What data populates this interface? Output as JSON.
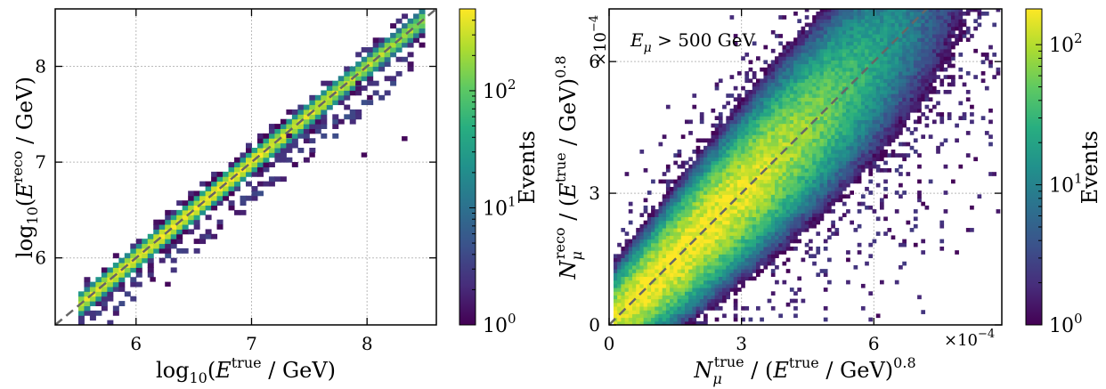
{
  "chart_data": [
    {
      "type": "heatmap",
      "title": "",
      "xlabel": "log10(E^true / GeV)",
      "ylabel": "log10(E^reco / GeV)",
      "xlim": [
        5.3,
        8.6
      ],
      "ylim": [
        5.3,
        8.6
      ],
      "xticks": [
        6,
        7,
        8
      ],
      "yticks": [
        6,
        7,
        8
      ],
      "grid": true,
      "diagonal": "y = x (dashed grey)",
      "colorbar": {
        "label": "Events",
        "scale": "log",
        "range": [
          1,
          500
        ],
        "ticks": [
          {
            "base": "10",
            "exp": "0"
          },
          {
            "base": "10",
            "exp": "1"
          },
          {
            "base": "10",
            "exp": "2"
          }
        ],
        "colormap": "viridis"
      },
      "density": {
        "ridge": "y = x",
        "x_range": [
          5.5,
          8.45
        ],
        "ridge_width_log10": 0.06,
        "peak_counts": 500,
        "outlier_points": [
          [
            7.95,
            7.05
          ],
          [
            8.3,
            7.22
          ],
          [
            8.0,
            7.65
          ],
          [
            7.9,
            7.8
          ],
          [
            7.35,
            6.95
          ],
          [
            6.25,
            5.7
          ],
          [
            6.12,
            5.75
          ],
          [
            6.7,
            6.3
          ],
          [
            7.5,
            7.05
          ],
          [
            7.3,
            7.25
          ]
        ]
      }
    },
    {
      "type": "heatmap",
      "title": "",
      "xlabel": "N_μ^true / (E^true / GeV)^0.8",
      "ylabel": "N_μ^reco / (E^true / GeV)^0.8",
      "xlim": [
        0,
        0.00089
      ],
      "ylim": [
        0,
        0.00072
      ],
      "xticks": [
        0,
        0.0003,
        0.0006
      ],
      "yticks": [
        0,
        0.0003,
        0.0006
      ],
      "x_multiplier": {
        "base": "×10",
        "exp": "−4"
      },
      "y_multiplier": {
        "base": "×10",
        "exp": "−4"
      },
      "tick_labels": [
        "0",
        "3",
        "6"
      ],
      "grid": true,
      "diagonal": "y = x (dashed grey)",
      "annotation": "E_μ > 500 GeV",
      "colorbar": {
        "label": "Events",
        "scale": "log",
        "range": [
          1,
          180
        ],
        "ticks": [
          {
            "base": "10",
            "exp": "0"
          },
          {
            "base": "10",
            "exp": "1"
          },
          {
            "base": "10",
            "exp": "2"
          }
        ],
        "colormap": "viridis"
      },
      "density": {
        "ridge": "y = x",
        "core_center": [
          0.00017,
          0.00016
        ],
        "x_range": [
          1e-05,
          0.00088
        ],
        "peak_counts": 180
      }
    }
  ]
}
